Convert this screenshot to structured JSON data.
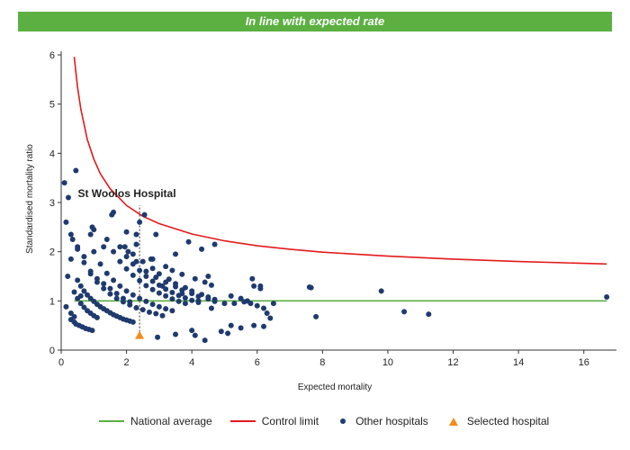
{
  "banner": {
    "text": "In line with expected rate",
    "color": "#5bb041"
  },
  "chart_data": {
    "type": "scatter",
    "title": "",
    "xlabel": "Expected mortality",
    "ylabel": "Standardised mortality ratio",
    "xlim": [
      0,
      17
    ],
    "ylim": [
      0,
      6
    ],
    "xticks": [
      0,
      2,
      4,
      6,
      8,
      10,
      12,
      14,
      16
    ],
    "yticks": [
      0,
      1,
      2,
      3,
      4,
      5,
      6
    ],
    "grid": false,
    "legend_position": "bottom",
    "annotation": {
      "text": "St Woolos Hospital",
      "x": 2.4,
      "y": 0.3
    },
    "series": [
      {
        "name": "National average",
        "type": "line",
        "color": "#5bb041",
        "x": [
          0.4,
          16.7
        ],
        "y": [
          1.0,
          1.0
        ]
      },
      {
        "name": "Control limit",
        "type": "line",
        "color": "#e31a1c",
        "x": [
          0.4,
          0.5,
          0.6,
          0.8,
          1.0,
          1.2,
          1.5,
          2.0,
          2.5,
          3.0,
          4.0,
          5.0,
          6.0,
          7.0,
          8.0,
          10.0,
          12.0,
          14.0,
          16.7
        ],
        "y": [
          5.96,
          5.35,
          4.9,
          4.28,
          3.88,
          3.58,
          3.28,
          2.94,
          2.72,
          2.57,
          2.36,
          2.22,
          2.12,
          2.05,
          1.99,
          1.91,
          1.85,
          1.8,
          1.75
        ]
      },
      {
        "name": "Other hospitals",
        "type": "scatter",
        "color": "#1f3a6e",
        "x": [
          0.15,
          0.3,
          0.4,
          0.3,
          0.4,
          0.45,
          0.55,
          0.65,
          0.75,
          0.85,
          0.95,
          0.2,
          0.4,
          0.5,
          0.6,
          0.7,
          0.8,
          0.9,
          1.0,
          1.1,
          0.3,
          0.5,
          0.6,
          0.7,
          0.8,
          0.9,
          1.0,
          1.1,
          1.2,
          1.3,
          1.4,
          1.5,
          1.6,
          1.7,
          1.8,
          1.9,
          2.0,
          2.1,
          2.2,
          0.5,
          0.7,
          0.9,
          1.1,
          1.3,
          1.5,
          1.7,
          1.9,
          2.1,
          2.3,
          2.5,
          2.7,
          2.9,
          3.1,
          1.0,
          1.2,
          1.4,
          1.6,
          1.8,
          2.0,
          2.2,
          2.4,
          2.6,
          2.8,
          3.0,
          3.2,
          3.4,
          1.4,
          1.6,
          1.8,
          2.0,
          2.2,
          2.4,
          2.6,
          2.8,
          3.0,
          3.2,
          3.4,
          3.6,
          3.8,
          1.8,
          2.0,
          2.2,
          2.4,
          2.6,
          2.8,
          3.0,
          3.2,
          3.4,
          3.6,
          3.8,
          4.0,
          4.2,
          2.2,
          2.5,
          2.8,
          3.0,
          3.3,
          3.5,
          3.8,
          4.0,
          4.3,
          4.5,
          4.7,
          2.6,
          2.9,
          3.2,
          3.5,
          3.7,
          4.0,
          4.2,
          4.5,
          4.7,
          2.0,
          2.3,
          2.8,
          3.2,
          3.4,
          3.7,
          4.1,
          4.4,
          4.6,
          0.1,
          0.3,
          0.5,
          0.7,
          0.9,
          1.1,
          1.3,
          1.5,
          1.7,
          1.9,
          2.1,
          1.0,
          1.6,
          2.3,
          2.4,
          2.9,
          3.5,
          3.9,
          4.3,
          4.5,
          4.7,
          5.0,
          5.2,
          5.3,
          5.5,
          5.6,
          5.7,
          5.8,
          5.9,
          6.0,
          6.1,
          6.2,
          6.3,
          6.4,
          6.5,
          5.2,
          5.5,
          5.9,
          6.2,
          4.0,
          4.4,
          4.9,
          5.1,
          0.15,
          0.22,
          0.45,
          0.95,
          1.55,
          1.95,
          2.55,
          2.75,
          3.1,
          3.7,
          4.2,
          4.6,
          5.85,
          6.1,
          7.6,
          7.65,
          7.8,
          9.8,
          10.5,
          11.25,
          16.7,
          2.05,
          0.35,
          0.6,
          2.3,
          0.9,
          1.3,
          2.95,
          3.5,
          4.1
        ],
        "y": [
          0.88,
          0.75,
          0.68,
          0.62,
          0.57,
          0.53,
          0.5,
          0.47,
          0.44,
          0.42,
          0.4,
          1.5,
          1.18,
          1.05,
          0.95,
          0.87,
          0.8,
          0.75,
          0.7,
          0.66,
          1.85,
          1.42,
          1.3,
          1.2,
          1.12,
          1.05,
          0.99,
          0.93,
          0.88,
          0.84,
          0.8,
          0.76,
          0.72,
          0.69,
          0.66,
          0.63,
          0.61,
          0.59,
          0.57,
          2.1,
          1.78,
          1.55,
          1.38,
          1.25,
          1.14,
          1.05,
          0.98,
          0.92,
          0.86,
          0.82,
          0.77,
          0.74,
          0.7,
          2.0,
          1.75,
          1.56,
          1.42,
          1.3,
          1.2,
          1.12,
          1.05,
          0.99,
          0.93,
          0.88,
          0.84,
          0.8,
          2.25,
          2.0,
          1.8,
          1.65,
          1.52,
          1.41,
          1.31,
          1.23,
          1.16,
          1.1,
          1.04,
          0.99,
          0.95,
          2.1,
          1.9,
          1.75,
          1.62,
          1.5,
          1.4,
          1.32,
          1.24,
          1.17,
          1.11,
          1.06,
          1.01,
          0.97,
          1.95,
          1.8,
          1.66,
          1.55,
          1.44,
          1.35,
          1.27,
          1.2,
          1.13,
          1.08,
          1.03,
          1.6,
          1.48,
          1.38,
          1.29,
          1.22,
          1.15,
          1.09,
          1.04,
          0.99,
          2.4,
          2.15,
          1.85,
          1.7,
          1.62,
          1.54,
          1.45,
          1.38,
          1.32,
          3.4,
          2.35,
          2.05,
          1.9,
          1.6,
          1.45,
          1.35,
          1.25,
          1.15,
          1.05,
          0.98,
          2.45,
          2.8,
          2.35,
          2.6,
          2.35,
          1.95,
          2.2,
          2.05,
          1.5,
          2.15,
          0.95,
          1.1,
          0.95,
          1.05,
          0.98,
          1.0,
          0.95,
          1.3,
          0.9,
          1.25,
          0.85,
          0.75,
          0.65,
          0.95,
          0.5,
          0.45,
          0.5,
          0.48,
          0.4,
          0.2,
          0.38,
          0.34,
          2.6,
          3.1,
          3.65,
          2.5,
          2.75,
          2.1,
          2.75,
          1.85,
          1.3,
          1.15,
          1.0,
          0.85,
          1.45,
          1.3,
          1.28,
          1.27,
          0.68,
          1.2,
          0.78,
          0.73,
          1.08,
          2.0,
          2.25,
          1.1,
          1.8,
          2.35,
          2.1,
          0.26,
          0.32,
          0.3
        ]
      },
      {
        "name": "Selected hospital",
        "type": "scatter",
        "color": "#f28c1c",
        "x": [
          2.4
        ],
        "y": [
          0.3
        ]
      }
    ]
  },
  "legend": [
    {
      "label": "National average",
      "kind": "line",
      "color": "#5bb041"
    },
    {
      "label": "Control limit",
      "kind": "line",
      "color": "#e31a1c"
    },
    {
      "label": "Other hospitals",
      "kind": "dot",
      "color": "#1f3a6e"
    },
    {
      "label": "Selected hospital",
      "kind": "triangle",
      "color": "#f28c1c"
    }
  ]
}
